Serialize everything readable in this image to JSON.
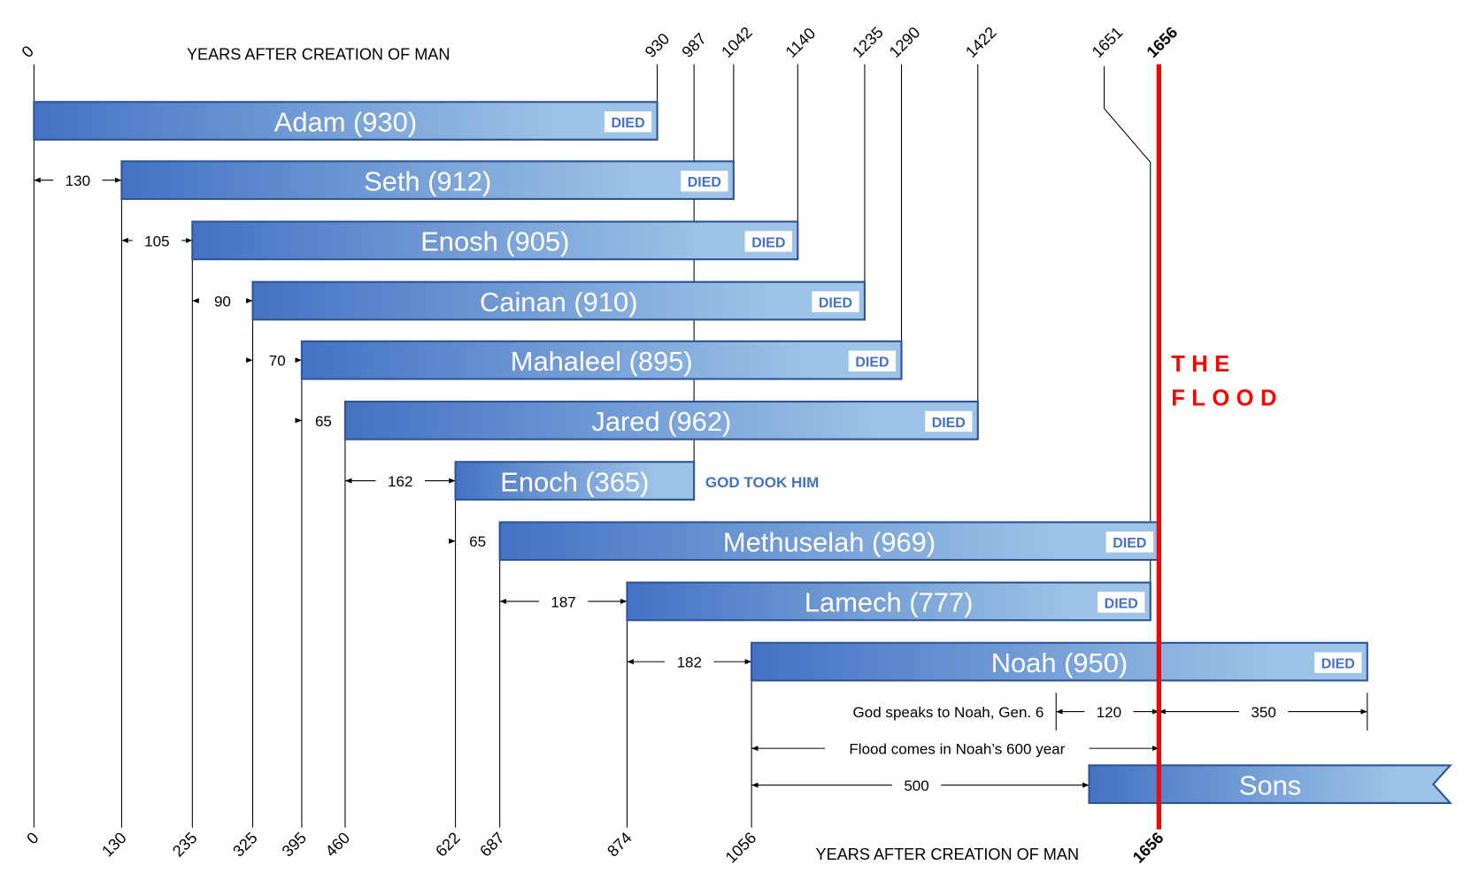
{
  "colors": {
    "bar_start": "#4472C4",
    "bar_end": "#9DC3E6",
    "bar_border": "#2F5597",
    "flood": "#FF0000",
    "died_text": "#4472C4"
  },
  "top_axis": {
    "title": "YEARS AFTER CREATION OF MAN",
    "ticks": [
      "0",
      "930",
      "987",
      "1042",
      "1140",
      "1235",
      "1290",
      "1422",
      "1651",
      "1656"
    ]
  },
  "bottom_axis": {
    "title": "YEARS AFTER CREATION OF MAN",
    "ticks": [
      "0",
      "130",
      "235",
      "325",
      "395",
      "460",
      "622",
      "687",
      "874",
      "1056",
      "1656"
    ]
  },
  "flood": {
    "year": 1656,
    "label_line1": "THE",
    "label_line2": "FLOOD"
  },
  "died_label": "DIED",
  "bars": [
    {
      "name": "Adam (930)",
      "start": 0,
      "end": 930,
      "end_tag": "DIED"
    },
    {
      "name": "Seth (912)",
      "start": 130,
      "end": 1042,
      "end_tag": "DIED",
      "gap": "130"
    },
    {
      "name": "Enosh (905)",
      "start": 235,
      "end": 1140,
      "end_tag": "DIED",
      "gap": "105"
    },
    {
      "name": "Cainan (910)",
      "start": 325,
      "end": 1235,
      "end_tag": "DIED",
      "gap": "90"
    },
    {
      "name": "Mahaleel (895)",
      "start": 395,
      "end": 1290,
      "end_tag": "DIED",
      "gap": "70"
    },
    {
      "name": "Jared (962)",
      "start": 460,
      "end": 1422,
      "end_tag": "DIED",
      "gap": "65"
    },
    {
      "name": "Enoch (365)",
      "start": 622,
      "end": 987,
      "end_tag": "GOD TOOK HIM",
      "gap": "162"
    },
    {
      "name": "Methuselah (969)",
      "start": 687,
      "end": 1656,
      "end_tag": "DIED",
      "gap": "65"
    },
    {
      "name": "Lamech (777)",
      "start": 874,
      "end": 1651,
      "end_tag": "DIED",
      "gap": "187"
    },
    {
      "name": "Noah (950)",
      "start": 1056,
      "end": 2006,
      "end_tag": "DIED",
      "gap": "182"
    }
  ],
  "sons": {
    "name": "Sons",
    "gap": "500"
  },
  "notes": {
    "god_speaks": "God speaks to Noah, Gen. 6",
    "span_120": "120",
    "span_350": "350",
    "flood_600": "Flood comes in Noah’s 600 year"
  }
}
